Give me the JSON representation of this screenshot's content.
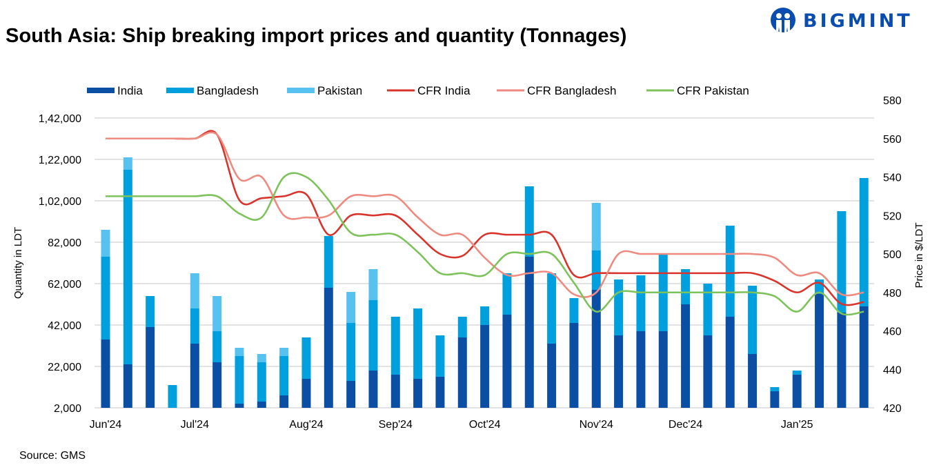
{
  "title": "South Asia: Ship breaking import prices and quantity (Tonnages)",
  "logo": {
    "text": "BIGMINT",
    "color": "#0A4DB0"
  },
  "source": "Source: GMS",
  "chart_data": {
    "type": "bar+line",
    "ylabel": "Quantity in LDT",
    "y2label": "Price in $/LDT",
    "ylim": [
      2000,
      142000
    ],
    "y2lim": [
      420,
      580
    ],
    "yticks": [
      "2,000",
      "22,000",
      "42,000",
      "62,000",
      "82,000",
      "1,02,000",
      "1,22,000",
      "1,42,000"
    ],
    "y2ticks": [
      "420",
      "440",
      "460",
      "480",
      "500",
      "520",
      "540",
      "560",
      "580"
    ],
    "grid": true,
    "legend": "top",
    "categories": [
      "Jun'24",
      "",
      "",
      "",
      "Jul'24",
      "",
      "",
      "",
      "",
      "Aug'24",
      "",
      "",
      "",
      "Sep'24",
      "",
      "",
      "",
      "Oct'24",
      "",
      "",
      "",
      "",
      "Nov'24",
      "",
      "",
      "",
      "Dec'24",
      "",
      "",
      "",
      "",
      "Jan'25",
      "",
      "",
      ""
    ],
    "bar_series": [
      {
        "name": "India",
        "color": "#0A4FA3",
        "values": [
          35000,
          23000,
          41000,
          0,
          33000,
          24000,
          4000,
          5000,
          8000,
          16000,
          60000,
          15000,
          20000,
          18000,
          16000,
          17000,
          36000,
          42000,
          47000,
          75000,
          33000,
          43000,
          59000,
          37000,
          39000,
          39000,
          52000,
          37000,
          46000,
          28000,
          10000,
          18000,
          57000,
          48000,
          51000
        ]
      },
      {
        "name": "Bangladesh",
        "color": "#00A0DF",
        "values": [
          40000,
          94000,
          15000,
          13000,
          17000,
          15000,
          23000,
          19000,
          19000,
          20000,
          25000,
          28000,
          34000,
          28000,
          34000,
          20000,
          10000,
          9000,
          20000,
          34000,
          34000,
          12000,
          19000,
          27000,
          27000,
          37000,
          17000,
          25000,
          44000,
          33000,
          2000,
          2000,
          7000,
          49000,
          62000
        ]
      },
      {
        "name": "Pakistan",
        "color": "#57C2F0",
        "values": [
          13000,
          6000,
          0,
          0,
          17000,
          17000,
          4000,
          4000,
          4000,
          0,
          0,
          15000,
          15000,
          0,
          0,
          0,
          0,
          0,
          0,
          0,
          0,
          0,
          23000,
          0,
          0,
          0,
          0,
          0,
          0,
          0,
          0,
          0,
          0,
          0,
          0
        ]
      }
    ],
    "line_series": [
      {
        "name": "CFR India",
        "color": "#D9342B",
        "values": [
          560,
          560,
          560,
          560,
          560,
          562,
          528,
          529,
          530,
          531,
          510,
          520,
          520,
          520,
          510,
          500,
          499,
          510,
          510,
          510,
          510,
          489,
          490,
          490,
          490,
          490,
          490,
          490,
          490,
          490,
          486,
          480,
          485,
          474,
          475
        ]
      },
      {
        "name": "CFR Bangladesh",
        "color": "#EE8A80",
        "values": [
          560,
          560,
          560,
          560,
          560,
          562,
          539,
          540,
          520,
          519,
          520,
          530,
          530,
          530,
          519,
          510,
          510,
          498,
          489,
          490,
          490,
          479,
          480,
          500,
          500,
          500,
          500,
          500,
          500,
          500,
          498,
          489,
          490,
          479,
          480
        ]
      },
      {
        "name": "CFR Pakistan",
        "color": "#7DC25A",
        "values": [
          530,
          530,
          530,
          530,
          530,
          530,
          521,
          519,
          540,
          540,
          528,
          511,
          510,
          510,
          501,
          490,
          490,
          489,
          500,
          500,
          500,
          485,
          470,
          480,
          480,
          480,
          480,
          480,
          480,
          480,
          478,
          470,
          480,
          469,
          470
        ]
      }
    ]
  }
}
